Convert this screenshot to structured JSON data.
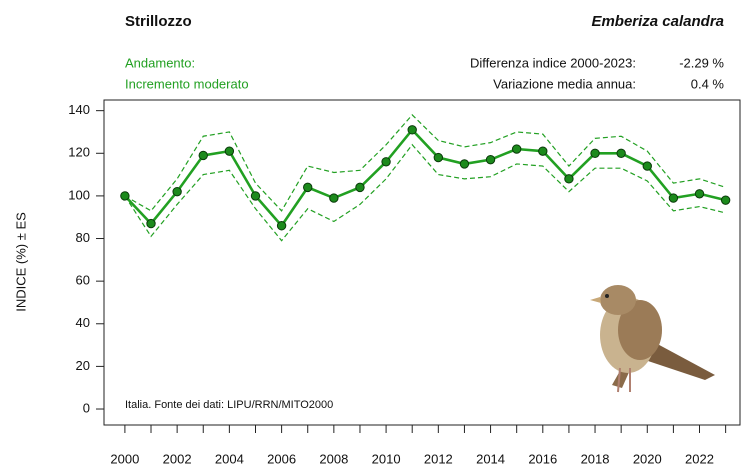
{
  "chart_data": {
    "type": "line",
    "title": "Strillozzo",
    "subtitle": "Emberiza calandra",
    "trend_label": "Andamento:",
    "trend": "Incremento moderato",
    "stats": [
      {
        "label": "Differenza indice 2000-2023:",
        "value": "-2.29 %"
      },
      {
        "label": "Variazione media annua:",
        "value": "0.4 %"
      }
    ],
    "ylabel": "INDICE (%) ± ES",
    "source": "Italia. Fonte dei dati: LIPU/RRN/MITO2000",
    "x": [
      2000,
      2001,
      2002,
      2003,
      2004,
      2005,
      2006,
      2007,
      2008,
      2009,
      2010,
      2011,
      2012,
      2013,
      2014,
      2015,
      2016,
      2017,
      2018,
      2019,
      2020,
      2021,
      2022,
      2023
    ],
    "series": [
      {
        "color": "#22a022",
        "style": "solid",
        "markers": true,
        "values": [
          100,
          87,
          102,
          119,
          121,
          100,
          86,
          104,
          99,
          104,
          116,
          131,
          118,
          115,
          117,
          122,
          121,
          108,
          120,
          120,
          114,
          99,
          101,
          98
        ]
      },
      {
        "color": "#22a022",
        "style": "dashed",
        "markers": false,
        "values": [
          100,
          93,
          108,
          128,
          130,
          106,
          93,
          114,
          111,
          112,
          124,
          138,
          126,
          123,
          125,
          130,
          129,
          114,
          127,
          128,
          121,
          106,
          108,
          104
        ]
      },
      {
        "color": "#22a022",
        "style": "dashed",
        "markers": false,
        "values": [
          100,
          81,
          96,
          110,
          112,
          94,
          79,
          94,
          88,
          96,
          108,
          124,
          110,
          108,
          109,
          115,
          114,
          102,
          113,
          113,
          107,
          93,
          95,
          92
        ]
      }
    ],
    "xlim": [
      1999.2,
      2023.55
    ],
    "ylim": [
      -7.5,
      145
    ],
    "xticks": [
      2000,
      2002,
      2004,
      2006,
      2008,
      2010,
      2012,
      2014,
      2016,
      2018,
      2020,
      2022
    ],
    "xminorticks": [
      2001,
      2003,
      2005,
      2007,
      2009,
      2011,
      2013,
      2015,
      2017,
      2019,
      2021,
      2023
    ],
    "yticks": [
      0,
      20,
      40,
      60,
      80,
      100,
      120,
      140
    ],
    "grid": false
  }
}
